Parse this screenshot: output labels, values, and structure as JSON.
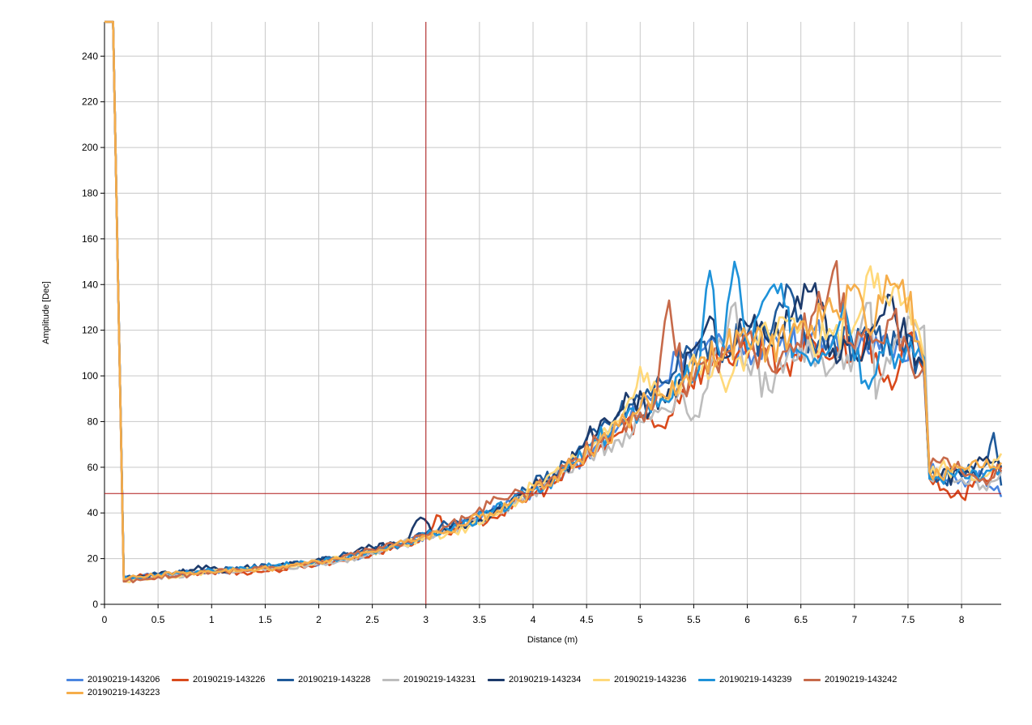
{
  "chart_data": {
    "type": "line",
    "title": "",
    "xlabel": "Distance (m)",
    "ylabel": "Amplitude [Dec]",
    "xlim": [
      0,
      8.37
    ],
    "ylim": [
      0,
      255
    ],
    "xticks": [
      0,
      0.5,
      1,
      1.5,
      2,
      2.5,
      3,
      3.5,
      4,
      4.5,
      5,
      5.5,
      6,
      6.5,
      7,
      7.5,
      8
    ],
    "xtick_labels": [
      "0",
      "0.5",
      "1",
      "1.5",
      "2",
      "2.5",
      "3",
      "3.5",
      "4",
      "4.5",
      "5",
      "5.5",
      "6",
      "6.5",
      "7",
      "7.5",
      "8"
    ],
    "yticks": [
      0,
      20,
      40,
      60,
      80,
      100,
      120,
      140,
      160,
      180,
      200,
      220,
      240
    ],
    "ytick_labels": [
      "0",
      "20",
      "40",
      "60",
      "80",
      "100",
      "120",
      "140",
      "160",
      "180",
      "200",
      "220",
      "240"
    ],
    "grid": true,
    "legend_position": "bottom",
    "cursor": {
      "x": 3.0,
      "y": 48.5,
      "color": "#b01818"
    },
    "series": [
      {
        "name": "20190219-143206",
        "color": "#4a86e0",
        "x": [
          0,
          0.08,
          0.18,
          0.2,
          0.3,
          0.5,
          0.8,
          1.0,
          1.3,
          1.6,
          1.9,
          2.2,
          2.5,
          2.8,
          3.0,
          3.2,
          3.4,
          3.6,
          3.8,
          4.0,
          4.2,
          4.4,
          4.6,
          4.8,
          5.0,
          5.2,
          5.35,
          5.45,
          5.6,
          5.8,
          6.0,
          6.2,
          6.4,
          6.6,
          6.8,
          7.0,
          7.2,
          7.4,
          7.6,
          7.65,
          7.7,
          7.8,
          8.0,
          8.2,
          8.37
        ],
        "y": [
          255,
          255,
          12,
          12,
          12,
          13,
          14,
          14,
          15,
          16,
          17,
          19,
          22,
          26,
          30,
          33,
          36,
          40,
          44,
          50,
          55,
          62,
          70,
          78,
          86,
          96,
          108,
          110,
          112,
          110,
          112,
          115,
          113,
          118,
          116,
          113,
          117,
          115,
          113,
          100,
          58,
          57,
          55,
          57,
          47
        ]
      },
      {
        "name": "20190219-143226",
        "color": "#d94a1c",
        "x": [
          0,
          0.08,
          0.18,
          0.2,
          0.3,
          0.5,
          0.8,
          1.0,
          1.3,
          1.6,
          1.9,
          2.2,
          2.5,
          2.8,
          3.0,
          3.1,
          3.2,
          3.4,
          3.6,
          3.8,
          4.0,
          4.2,
          4.4,
          4.6,
          4.8,
          5.0,
          5.2,
          5.4,
          5.6,
          5.8,
          6.0,
          6.2,
          6.4,
          6.6,
          6.8,
          7.0,
          7.2,
          7.35,
          7.5,
          7.6,
          7.65,
          7.7,
          7.8,
          8.0,
          8.2,
          8.37
        ],
        "y": [
          255,
          255,
          11,
          11,
          12,
          12,
          13,
          14,
          14,
          15,
          17,
          19,
          22,
          26,
          29,
          39,
          31,
          35,
          38,
          42,
          48,
          53,
          60,
          67,
          75,
          82,
          78,
          94,
          104,
          110,
          108,
          113,
          100,
          116,
          108,
          112,
          110,
          94,
          118,
          107,
          102,
          55,
          50,
          47,
          55,
          60
        ]
      },
      {
        "name": "20190219-143228",
        "color": "#1f5a9a",
        "x": [
          0,
          0.08,
          0.18,
          0.2,
          0.3,
          0.5,
          0.8,
          1.0,
          1.3,
          1.6,
          1.9,
          2.2,
          2.5,
          2.8,
          3.0,
          3.2,
          3.4,
          3.6,
          3.8,
          4.0,
          4.2,
          4.4,
          4.6,
          4.8,
          5.0,
          5.2,
          5.4,
          5.6,
          5.8,
          6.0,
          6.2,
          6.4,
          6.6,
          6.8,
          7.0,
          7.2,
          7.4,
          7.6,
          7.65,
          7.7,
          7.8,
          8.0,
          8.2,
          8.3,
          8.37
        ],
        "y": [
          255,
          255,
          12,
          12,
          12,
          13,
          14,
          15,
          16,
          17,
          18,
          21,
          24,
          27,
          31,
          35,
          37,
          41,
          46,
          52,
          58,
          66,
          75,
          83,
          90,
          97,
          108,
          115,
          112,
          118,
          116,
          138,
          116,
          118,
          112,
          118,
          114,
          108,
          104,
          56,
          55,
          56,
          60,
          75,
          52
        ]
      },
      {
        "name": "20190219-143231",
        "color": "#bdbdbd",
        "x": [
          0,
          0.08,
          0.18,
          0.2,
          0.3,
          0.5,
          0.8,
          1.0,
          1.3,
          1.6,
          1.9,
          2.2,
          2.5,
          2.8,
          3.0,
          3.2,
          3.4,
          3.6,
          3.8,
          4.0,
          4.2,
          4.4,
          4.6,
          4.8,
          5.0,
          5.2,
          5.4,
          5.55,
          5.7,
          5.85,
          6.0,
          6.2,
          6.4,
          6.6,
          6.8,
          7.0,
          7.15,
          7.2,
          7.4,
          7.6,
          7.65,
          7.7,
          7.8,
          8.0,
          8.2,
          8.37
        ],
        "y": [
          255,
          255,
          11,
          11,
          12,
          12,
          13,
          14,
          15,
          16,
          17,
          19,
          22,
          28,
          29,
          32,
          35,
          38,
          44,
          49,
          55,
          62,
          68,
          72,
          80,
          86,
          92,
          82,
          110,
          130,
          105,
          94,
          113,
          110,
          104,
          110,
          132,
          90,
          118,
          120,
          122,
          55,
          57,
          55,
          52,
          58
        ]
      },
      {
        "name": "20190219-143234",
        "color": "#1c3a6b",
        "x": [
          0,
          0.08,
          0.18,
          0.2,
          0.3,
          0.5,
          0.8,
          0.95,
          1.1,
          1.3,
          1.6,
          1.9,
          2.2,
          2.5,
          2.8,
          2.95,
          3.1,
          3.3,
          3.5,
          3.7,
          3.9,
          4.1,
          4.3,
          4.5,
          4.7,
          4.9,
          5.1,
          5.3,
          5.5,
          5.65,
          5.8,
          6.0,
          6.2,
          6.4,
          6.6,
          6.8,
          7.0,
          7.2,
          7.35,
          7.5,
          7.6,
          7.65,
          7.7,
          7.8,
          8.0,
          8.2,
          8.37
        ],
        "y": [
          255,
          255,
          12,
          12,
          12,
          13,
          15,
          17,
          14,
          16,
          17,
          18,
          21,
          25,
          26,
          38,
          31,
          34,
          37,
          42,
          48,
          54,
          60,
          72,
          80,
          90,
          85,
          94,
          112,
          126,
          108,
          122,
          115,
          124,
          137,
          112,
          110,
          122,
          135,
          112,
          108,
          105,
          56,
          55,
          57,
          63,
          60
        ]
      },
      {
        "name": "20190219-143236",
        "color": "#ffd97a",
        "x": [
          0,
          0.08,
          0.18,
          0.2,
          0.3,
          0.5,
          0.8,
          1.0,
          1.3,
          1.6,
          1.9,
          2.2,
          2.5,
          2.8,
          3.0,
          3.2,
          3.4,
          3.6,
          3.8,
          4.0,
          4.2,
          4.4,
          4.6,
          4.8,
          5.0,
          5.2,
          5.4,
          5.6,
          5.8,
          6.0,
          6.2,
          6.4,
          6.6,
          6.8,
          7.0,
          7.15,
          7.25,
          7.4,
          7.6,
          7.65,
          7.7,
          7.8,
          8.0,
          8.2,
          8.37
        ],
        "y": [
          255,
          255,
          10,
          10,
          11,
          12,
          13,
          14,
          15,
          16,
          18,
          20,
          23,
          26,
          30,
          31,
          34,
          39,
          44,
          52,
          58,
          64,
          72,
          80,
          104,
          90,
          98,
          108,
          93,
          110,
          118,
          125,
          114,
          118,
          122,
          148,
          134,
          140,
          120,
          108,
          56,
          60,
          58,
          56,
          66
        ]
      },
      {
        "name": "20190219-143239",
        "color": "#1e92d9",
        "x": [
          0,
          0.08,
          0.18,
          0.2,
          0.3,
          0.5,
          0.8,
          1.0,
          1.3,
          1.6,
          1.9,
          2.2,
          2.5,
          2.8,
          3.0,
          3.2,
          3.4,
          3.6,
          3.8,
          4.0,
          4.2,
          4.4,
          4.6,
          4.8,
          5.0,
          5.2,
          5.4,
          5.55,
          5.65,
          5.75,
          5.88,
          6.0,
          6.25,
          6.45,
          6.7,
          6.9,
          7.1,
          7.3,
          7.45,
          7.6,
          7.65,
          7.7,
          7.8,
          8.0,
          8.2,
          8.37
        ],
        "y": [
          255,
          255,
          12,
          12,
          12,
          13,
          14,
          15,
          16,
          17,
          18,
          20,
          23,
          27,
          30,
          33,
          36,
          40,
          44,
          50,
          55,
          62,
          72,
          78,
          84,
          90,
          97,
          103,
          146,
          108,
          150,
          112,
          140,
          112,
          110,
          132,
          98,
          116,
          106,
          112,
          108,
          55,
          55,
          60,
          56,
          59
        ]
      },
      {
        "name": "20190219-143242",
        "color": "#c76a4a",
        "x": [
          0,
          0.08,
          0.18,
          0.2,
          0.3,
          0.5,
          0.8,
          1.0,
          1.3,
          1.6,
          1.9,
          2.2,
          2.5,
          2.8,
          3.0,
          3.2,
          3.4,
          3.6,
          3.8,
          4.0,
          4.2,
          4.4,
          4.6,
          4.8,
          5.0,
          5.15,
          5.27,
          5.4,
          5.6,
          5.8,
          6.0,
          6.2,
          6.4,
          6.6,
          6.8,
          7.0,
          7.2,
          7.35,
          7.5,
          7.6,
          7.65,
          7.7,
          7.8,
          8.0,
          8.2,
          8.37
        ],
        "y": [
          255,
          255,
          10,
          10,
          11,
          12,
          13,
          14,
          15,
          16,
          18,
          20,
          24,
          27,
          30,
          34,
          38,
          44,
          48,
          50,
          56,
          64,
          72,
          78,
          84,
          90,
          133,
          96,
          106,
          110,
          118,
          105,
          114,
          126,
          146,
          112,
          116,
          125,
          112,
          100,
          104,
          60,
          62,
          58,
          55,
          58
        ]
      },
      {
        "name": "20190219-143223",
        "color": "#f5ad4a",
        "x": [
          0,
          0.08,
          0.18,
          0.2,
          0.3,
          0.5,
          0.8,
          1.0,
          1.3,
          1.6,
          1.9,
          2.2,
          2.5,
          2.8,
          3.0,
          3.2,
          3.4,
          3.6,
          3.8,
          4.0,
          4.2,
          4.4,
          4.6,
          4.8,
          5.0,
          5.2,
          5.4,
          5.6,
          5.8,
          6.0,
          6.2,
          6.4,
          6.6,
          6.8,
          7.0,
          7.15,
          7.3,
          7.45,
          7.6,
          7.65,
          7.7,
          7.8,
          8.0,
          8.2,
          8.37
        ],
        "y": [
          255,
          255,
          11,
          11,
          12,
          13,
          14,
          14,
          15,
          16,
          18,
          20,
          23,
          27,
          30,
          32,
          36,
          40,
          45,
          50,
          56,
          62,
          70,
          78,
          86,
          92,
          98,
          108,
          112,
          116,
          112,
          118,
          122,
          128,
          140,
          118,
          144,
          142,
          115,
          106,
          58,
          56,
          60,
          60,
          62
        ]
      }
    ]
  }
}
